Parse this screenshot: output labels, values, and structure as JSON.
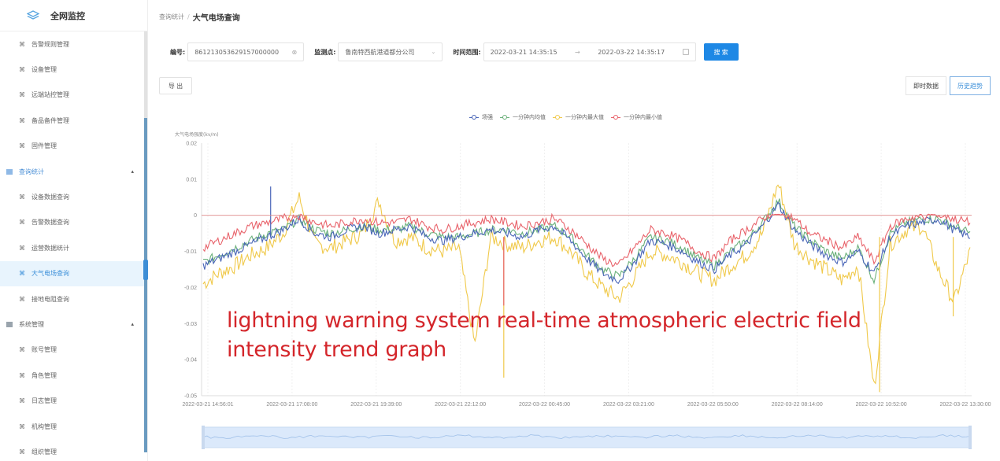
{
  "sidebar": {
    "logo_text": "全网监控",
    "items": [
      {
        "type": "sub",
        "label": "告警规则管理",
        "icon": "tool-icon"
      },
      {
        "type": "sub",
        "label": "设备管理",
        "icon": "tool-icon"
      },
      {
        "type": "sub",
        "label": "远端站控管理",
        "icon": "tool-icon"
      },
      {
        "type": "sub",
        "label": "备品备件管理",
        "icon": "tool-icon"
      },
      {
        "type": "sub",
        "label": "固件管理",
        "icon": "tool-icon"
      },
      {
        "type": "group",
        "label": "查询统计",
        "icon": "grid-icon",
        "expanded": true
      },
      {
        "type": "sub",
        "label": "设备数据查询",
        "icon": "tool-icon"
      },
      {
        "type": "sub",
        "label": "告警数据查询",
        "icon": "tool-icon"
      },
      {
        "type": "sub",
        "label": "运营数据统计",
        "icon": "tool-icon"
      },
      {
        "type": "sub",
        "label": "大气电场查询",
        "icon": "tool-icon",
        "active": true
      },
      {
        "type": "sub",
        "label": "接地电阻查询",
        "icon": "tool-icon"
      },
      {
        "type": "group",
        "label": "系统管理",
        "icon": "grid-icon",
        "expanded": true
      },
      {
        "type": "sub",
        "label": "账号管理",
        "icon": "tool-icon"
      },
      {
        "type": "sub",
        "label": "角色管理",
        "icon": "tool-icon"
      },
      {
        "type": "sub",
        "label": "日志管理",
        "icon": "tool-icon"
      },
      {
        "type": "sub",
        "label": "机构管理",
        "icon": "tool-icon"
      },
      {
        "type": "sub",
        "label": "组织管理",
        "icon": "tool-icon"
      }
    ],
    "caret_up": "▴",
    "sub_icon_glyph": "⌘"
  },
  "breadcrumb": {
    "parent": "查询统计",
    "separator": "/",
    "current": "大气电场查询"
  },
  "filters": {
    "id_label": "编号:",
    "id_value": "861213053629157000000",
    "monitor_label": "监测点:",
    "monitor_value": "鲁南特西航港道都分公司",
    "time_label": "时间范围:",
    "time_start": "2022-03-21 14:35:15",
    "time_sep": "→",
    "time_end": "2022-03-22 14:35:17",
    "search_label": "搜 索",
    "clear_glyph": "⊗",
    "chevron_glyph": "⌄"
  },
  "actions": {
    "export_label": "导 出",
    "toggle": [
      {
        "label": "即时数据",
        "active": false
      },
      {
        "label": "历史趋势",
        "active": true
      }
    ]
  },
  "colors": {
    "primary": "#1e88e5",
    "field": "#4a66b8",
    "avg": "#6ab07a",
    "max": "#f0c94a",
    "min": "#e8626a",
    "caption": "#d4262b"
  },
  "overlay_caption": {
    "line1": "lightning warning system real-time atmospheric electric field",
    "line2": "intensity trend graph"
  },
  "chart_data": {
    "type": "line",
    "title": "",
    "ylabel": "大气电场强度(kv/m)",
    "xlabel": "",
    "ylim": [
      -0.05,
      0.02
    ],
    "yticks": [
      0.02,
      0.01,
      0,
      -0.01,
      -0.02,
      -0.03,
      -0.04,
      -0.05
    ],
    "ytick_labels": [
      "0.02",
      "0.01",
      "0",
      "-0.01",
      "-0.02",
      "-0.03",
      "-0.04",
      "-0.05"
    ],
    "x_tick_labels": [
      "2022-03-21 14:56:01",
      "2022-03-21 17:08:00",
      "2022-03-21 19:39:00",
      "2022-03-21 22:12:00",
      "2022-03-22 00:45:00",
      "2022-03-22 03:21:00",
      "2022-03-22 05:50:00",
      "2022-03-22 08:14:00",
      "2022-03-22 10:52:00",
      "2022-03-22 13:30:00"
    ],
    "legend": [
      "场强",
      "一分钟内均值",
      "一分钟内最大值",
      "一分钟内最小值"
    ],
    "legend_position": "top",
    "grid": "vertical-dashed",
    "reference_line": 0,
    "series": [
      {
        "name": "场强",
        "color": "#4a66b8",
        "values": [
          -0.014,
          -0.012,
          -0.01,
          -0.008,
          -0.006,
          -0.004,
          -0.001,
          -0.005,
          -0.006,
          -0.004,
          -0.003,
          -0.005,
          -0.004,
          -0.003,
          -0.006,
          -0.007,
          -0.006,
          -0.005,
          -0.004,
          -0.005,
          -0.006,
          -0.004,
          -0.003,
          -0.007,
          -0.012,
          -0.016,
          -0.018,
          -0.013,
          -0.007,
          -0.008,
          -0.01,
          -0.013,
          -0.015,
          -0.011,
          -0.008,
          -0.003,
          0.003,
          -0.004,
          -0.008,
          -0.011,
          -0.013,
          -0.01,
          -0.016,
          -0.006,
          -0.003,
          -0.002,
          -0.001,
          -0.004,
          -0.006
        ]
      },
      {
        "name": "一分钟内均值",
        "color": "#6ab07a",
        "values": [
          -0.013,
          -0.011,
          -0.009,
          -0.007,
          -0.005,
          -0.004,
          -0.001,
          -0.004,
          -0.005,
          -0.004,
          -0.003,
          -0.004,
          -0.004,
          -0.003,
          -0.005,
          -0.006,
          -0.006,
          -0.005,
          -0.004,
          -0.004,
          -0.005,
          -0.004,
          -0.003,
          -0.006,
          -0.011,
          -0.015,
          -0.017,
          -0.012,
          -0.006,
          -0.007,
          -0.009,
          -0.012,
          -0.014,
          -0.01,
          -0.007,
          -0.002,
          0.004,
          -0.003,
          -0.007,
          -0.01,
          -0.012,
          -0.009,
          -0.018,
          -0.005,
          -0.002,
          -0.001,
          -0.001,
          -0.003,
          -0.005
        ]
      },
      {
        "name": "一分钟内最大值",
        "color": "#f0c94a",
        "values": [
          -0.019,
          -0.016,
          -0.014,
          -0.011,
          -0.009,
          -0.005,
          0.005,
          -0.008,
          -0.009,
          -0.007,
          -0.005,
          0.004,
          -0.007,
          -0.006,
          -0.009,
          -0.01,
          -0.009,
          -0.036,
          -0.006,
          -0.008,
          -0.009,
          -0.007,
          -0.006,
          -0.01,
          -0.016,
          -0.02,
          -0.023,
          -0.017,
          -0.01,
          -0.011,
          -0.013,
          -0.016,
          -0.018,
          -0.014,
          -0.011,
          -0.005,
          0.009,
          -0.008,
          -0.012,
          -0.015,
          -0.018,
          -0.014,
          -0.048,
          -0.008,
          -0.004,
          -0.003,
          -0.015,
          -0.024,
          -0.01
        ]
      },
      {
        "name": "一分钟内最小值",
        "color": "#e8626a",
        "values": [
          -0.009,
          -0.007,
          -0.005,
          -0.003,
          -0.002,
          -0.001,
          0.0,
          -0.002,
          -0.003,
          -0.002,
          -0.001,
          -0.002,
          -0.002,
          -0.001,
          -0.003,
          -0.004,
          -0.003,
          -0.002,
          -0.001,
          -0.002,
          -0.003,
          -0.002,
          -0.001,
          -0.004,
          -0.008,
          -0.012,
          -0.014,
          -0.009,
          -0.004,
          -0.005,
          -0.007,
          -0.01,
          -0.012,
          -0.007,
          -0.004,
          -0.001,
          0.002,
          -0.001,
          -0.005,
          -0.007,
          -0.009,
          -0.006,
          -0.013,
          -0.003,
          -0.001,
          0.0,
          0.0,
          -0.001,
          -0.002
        ]
      }
    ],
    "datazoom": {
      "start": 0,
      "end": 100
    }
  }
}
